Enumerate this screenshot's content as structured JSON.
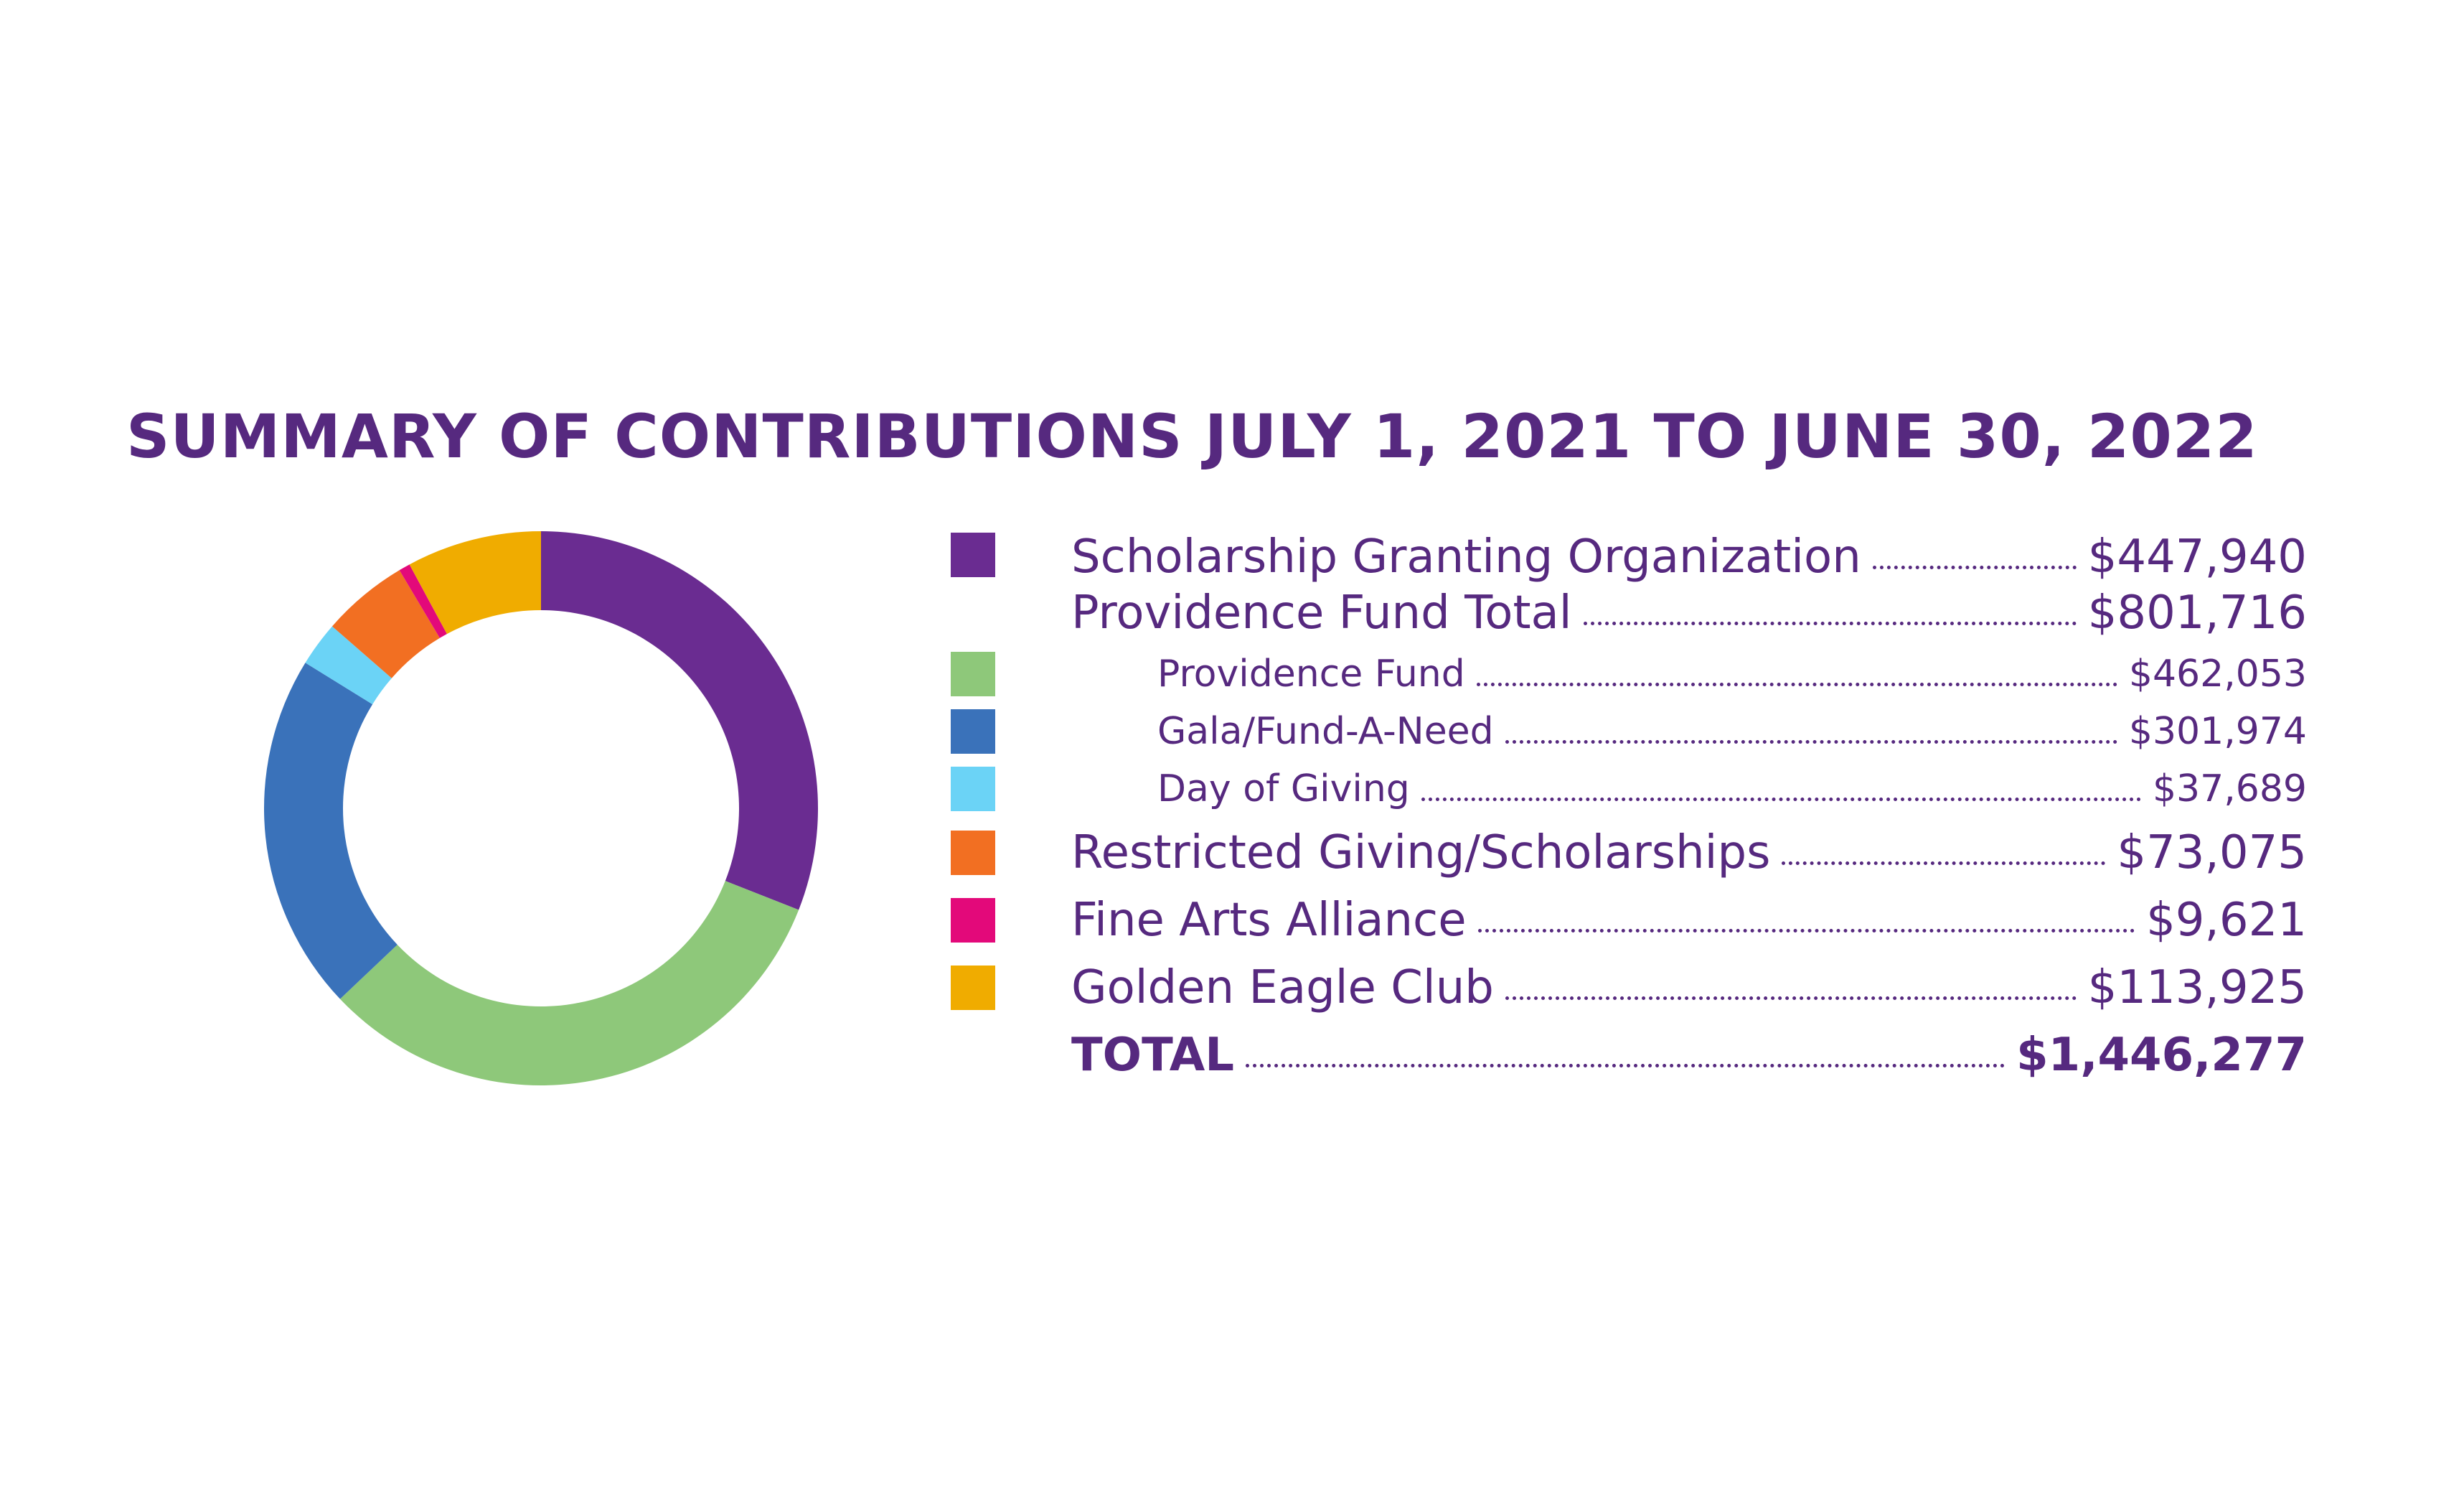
{
  "title": "SUMMARY OF CONTRIBUTIONS JULY 1, 2021 TO JUNE 30, 2022",
  "chart_data": {
    "type": "pie",
    "title": "SUMMARY OF CONTRIBUTIONS JULY 1, 2021 TO JUNE 30, 2022",
    "donut": true,
    "slices": [
      {
        "label": "Scholarship Granting Organization",
        "value": 447940,
        "color": "#6a2c91"
      },
      {
        "label": "Providence Fund",
        "value": 462053,
        "color": "#8ec87a"
      },
      {
        "label": "Gala/Fund-A-Need",
        "value": 301974,
        "color": "#3a72ba"
      },
      {
        "label": "Day of Giving",
        "value": 37689,
        "color": "#6bd3f6"
      },
      {
        "label": "Restricted Giving/Scholarships",
        "value": 73075,
        "color": "#f26f22"
      },
      {
        "label": "Fine Arts Alliance",
        "value": 9621,
        "color": "#e3097a"
      },
      {
        "label": "Golden Eagle Club",
        "value": 113925,
        "color": "#f0ac00"
      }
    ],
    "total": 1446277
  },
  "legend": {
    "rows": [
      {
        "label": "Scholarship Granting Organization",
        "value": "$447,940",
        "kind": "main",
        "color": "#6a2c91"
      },
      {
        "label": "Providence Fund Total",
        "value": "$801,716",
        "kind": "main",
        "color": ""
      },
      {
        "label": "Providence Fund",
        "value": "$462,053",
        "kind": "sub",
        "color": "#8ec87a"
      },
      {
        "label": "Gala/Fund-A-Need",
        "value": "$301,974",
        "kind": "sub",
        "color": "#3a72ba"
      },
      {
        "label": "Day of Giving",
        "value": "$37,689",
        "kind": "sub",
        "color": "#6bd3f6"
      },
      {
        "label": "Restricted Giving/Scholarships",
        "value": "$73,075",
        "kind": "main",
        "color": "#f26f22"
      },
      {
        "label": "Fine Arts Alliance",
        "value": "$9,621",
        "kind": "main",
        "color": "#e3097a"
      },
      {
        "label": "Golden Eagle Club",
        "value": "$113,925",
        "kind": "main",
        "color": "#f0ac00"
      },
      {
        "label": "TOTAL",
        "value": "$1,446,277",
        "kind": "total",
        "color": ""
      }
    ]
  }
}
